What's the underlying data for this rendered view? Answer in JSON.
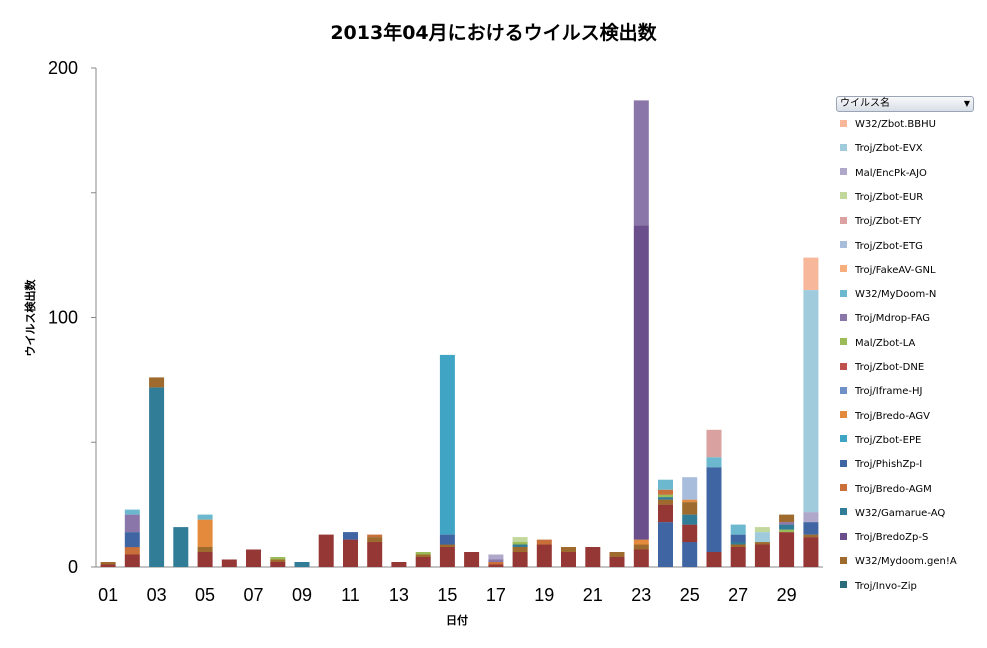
{
  "chart_data": {
    "type": "bar",
    "stacked": true,
    "title": "2013年04月におけるウイルス検出数",
    "xlabel": "日付",
    "ylabel": "ウイルス検出数",
    "ylim": [
      0,
      200
    ],
    "yticks": [
      0,
      100,
      200
    ],
    "grid": false,
    "legend_position": "right",
    "legend_title": "ウイルス名",
    "x_tick_labels": [
      "01",
      "03",
      "05",
      "07",
      "09",
      "11",
      "13",
      "15",
      "17",
      "19",
      "21",
      "23",
      "25",
      "27",
      "29"
    ],
    "categories": [
      "01",
      "02",
      "03",
      "04",
      "05",
      "06",
      "07",
      "08",
      "09",
      "10",
      "11",
      "12",
      "13",
      "14",
      "15",
      "16",
      "17",
      "18",
      "19",
      "20",
      "21",
      "22",
      "23",
      "24",
      "25",
      "26",
      "27",
      "28",
      "29",
      "30"
    ],
    "base_series": "Troj/Invo-Zip",
    "stacks": [
      [
        [
          "Troj/Invo-Zip",
          1
        ],
        [
          "W32/Mydoom.gen!A",
          1
        ]
      ],
      [
        [
          "Troj/Invo-Zip",
          5
        ],
        [
          "Troj/Bredo-AGM",
          3
        ],
        [
          "Troj/PhishZp-I",
          6
        ],
        [
          "Troj/Mdrop-FAG",
          7
        ],
        [
          "W32/MyDoom-N",
          2
        ]
      ],
      [
        [
          "W32/Gamarue-AQ",
          72
        ],
        [
          "W32/Mydoom.gen!A",
          4
        ]
      ],
      [
        [
          "W32/Gamarue-AQ",
          16
        ]
      ],
      [
        [
          "Troj/Invo-Zip",
          6
        ],
        [
          "W32/Mydoom.gen!A",
          2
        ],
        [
          "Troj/Bredo-AGV",
          11
        ],
        [
          "W32/MyDoom-N",
          2
        ]
      ],
      [
        [
          "Troj/Invo-Zip",
          3
        ]
      ],
      [
        [
          "Troj/Invo-Zip",
          7
        ]
      ],
      [
        [
          "Troj/Invo-Zip",
          2
        ],
        [
          "W32/Mydoom.gen!A",
          1
        ],
        [
          "Mal/Zbot-LA",
          1
        ]
      ],
      [
        [
          "W32/Gamarue-AQ",
          2
        ]
      ],
      [
        [
          "Troj/Invo-Zip",
          13
        ]
      ],
      [
        [
          "Troj/Invo-Zip",
          11
        ],
        [
          "Troj/PhishZp-I",
          3
        ]
      ],
      [
        [
          "Troj/Invo-Zip",
          10
        ],
        [
          "W32/Mydoom.gen!A",
          2
        ],
        [
          "Troj/Bredo-AGM",
          1
        ]
      ],
      [
        [
          "Troj/Invo-Zip",
          2
        ]
      ],
      [
        [
          "Troj/Invo-Zip",
          4
        ],
        [
          "W32/Mydoom.gen!A",
          1
        ],
        [
          "Mal/Zbot-LA",
          1
        ]
      ],
      [
        [
          "Troj/Invo-Zip",
          8
        ],
        [
          "W32/Mydoom.gen!A",
          1
        ],
        [
          "Troj/PhishZp-I",
          4
        ],
        [
          "Troj/Zbot-EPE",
          72
        ]
      ],
      [
        [
          "Troj/Invo-Zip",
          6
        ]
      ],
      [
        [
          "Troj/Invo-Zip",
          1
        ],
        [
          "Troj/Bredo-AGM",
          1
        ],
        [
          "Troj/Mdrop-FAG",
          1
        ],
        [
          "Mal/EncPk-AJO",
          2
        ]
      ],
      [
        [
          "Troj/Invo-Zip",
          6
        ],
        [
          "W32/Mydoom.gen!A",
          2
        ],
        [
          "W32/Gamarue-AQ",
          1
        ],
        [
          "Mal/Zbot-LA",
          1
        ],
        [
          "Troj/Zbot-EUR",
          2
        ]
      ],
      [
        [
          "Troj/Invo-Zip",
          9
        ],
        [
          "Troj/Bredo-AGM",
          2
        ]
      ],
      [
        [
          "Troj/Invo-Zip",
          6
        ],
        [
          "W32/Mydoom.gen!A",
          2
        ]
      ],
      [
        [
          "Troj/Invo-Zip",
          8
        ]
      ],
      [
        [
          "Troj/Invo-Zip",
          4
        ],
        [
          "W32/Mydoom.gen!A",
          2
        ]
      ],
      [
        [
          "Troj/Invo-Zip",
          7
        ],
        [
          "W32/Mydoom.gen!A",
          2
        ],
        [
          "Troj/Bredo-AGV",
          2
        ],
        [
          "Troj/BredoZp-S",
          126
        ],
        [
          "Troj/Mdrop-FAG",
          50
        ]
      ],
      [
        [
          "Troj/PhishZp-I",
          18
        ],
        [
          "Troj/Invo-Zip",
          7
        ],
        [
          "W32/Mydoom.gen!A",
          2
        ],
        [
          "W32/Gamarue-AQ",
          1
        ],
        [
          "Mal/Zbot-LA",
          1
        ],
        [
          "Troj/Bredo-AGM",
          2
        ],
        [
          "W32/MyDoom-N",
          4
        ]
      ],
      [
        [
          "Troj/PhishZp-I",
          10
        ],
        [
          "Troj/Invo-Zip",
          7
        ],
        [
          "W32/Gamarue-AQ",
          4
        ],
        [
          "W32/Mydoom.gen!A",
          5
        ],
        [
          "Troj/Bredo-AGV",
          1
        ],
        [
          "Troj/Zbot-ETG",
          9
        ]
      ],
      [
        [
          "Troj/Invo-Zip",
          6
        ],
        [
          "Troj/PhishZp-I",
          34
        ],
        [
          "W32/MyDoom-N",
          4
        ],
        [
          "Troj/Zbot-ETY",
          11
        ]
      ],
      [
        [
          "Troj/Invo-Zip",
          8
        ],
        [
          "W32/Mydoom.gen!A",
          1
        ],
        [
          "W32/Gamarue-AQ",
          1
        ],
        [
          "Troj/PhishZp-I",
          3
        ],
        [
          "W32/MyDoom-N",
          4
        ]
      ],
      [
        [
          "Troj/Invo-Zip",
          9
        ],
        [
          "W32/Mydoom.gen!A",
          1
        ],
        [
          "Troj/Zbot-EVX",
          4
        ],
        [
          "Troj/Zbot-EUR",
          2
        ]
      ],
      [
        [
          "Troj/Invo-Zip",
          14
        ],
        [
          "Mal/Zbot-LA",
          1
        ],
        [
          "W32/Gamarue-AQ",
          2
        ],
        [
          "Troj/Mdrop-FAG",
          1
        ],
        [
          "W32/Mydoom.gen!A",
          3
        ]
      ],
      [
        [
          "Troj/Invo-Zip",
          12
        ],
        [
          "W32/Mydoom.gen!A",
          1
        ],
        [
          "Troj/PhishZp-I",
          5
        ],
        [
          "Mal/EncPk-AJO",
          4
        ],
        [
          "Troj/Zbot-EVX",
          89
        ],
        [
          "W32/Zbot.BBHU",
          13
        ]
      ]
    ],
    "legend": [
      {
        "name": "W32/Zbot.BBHU",
        "color": "#f7b79a"
      },
      {
        "name": "Troj/Zbot-EVX",
        "color": "#9fcbdc"
      },
      {
        "name": "Mal/EncPk-AJO",
        "color": "#b0a8cb"
      },
      {
        "name": "Troj/Zbot-EUR",
        "color": "#c2d79b"
      },
      {
        "name": "Troj/Zbot-ETY",
        "color": "#d9a1a0"
      },
      {
        "name": "Troj/Zbot-ETG",
        "color": "#a8bcdc"
      },
      {
        "name": "Troj/FakeAV-GNL",
        "color": "#f6ae7d"
      },
      {
        "name": "W32/MyDoom-N",
        "color": "#6cb9cf"
      },
      {
        "name": "Troj/Mdrop-FAG",
        "color": "#8b76a9"
      },
      {
        "name": "Mal/Zbot-LA",
        "color": "#9bbb59"
      },
      {
        "name": "Troj/Zbot-DNE",
        "color": "#c0504d"
      },
      {
        "name": "Troj/Iframe-HJ",
        "color": "#7090c8"
      },
      {
        "name": "Troj/Bredo-AGV",
        "color": "#e48a3c"
      },
      {
        "name": "Troj/Zbot-EPE",
        "color": "#40a5c4"
      },
      {
        "name": "Troj/PhishZp-I",
        "color": "#3f66a3"
      },
      {
        "name": "Troj/Bredo-AGM",
        "color": "#c9703a"
      },
      {
        "name": "W32/Gamarue-AQ",
        "color": "#317c96"
      },
      {
        "name": "Troj/BredoZp-S",
        "color": "#6a4f8c"
      },
      {
        "name": "W32/Mydoom.gen!A",
        "color": "#9e6a2e"
      },
      {
        "name": "Troj/Invo-Zip",
        "color": "#2a6b7c"
      }
    ],
    "base_color": "#953735"
  }
}
